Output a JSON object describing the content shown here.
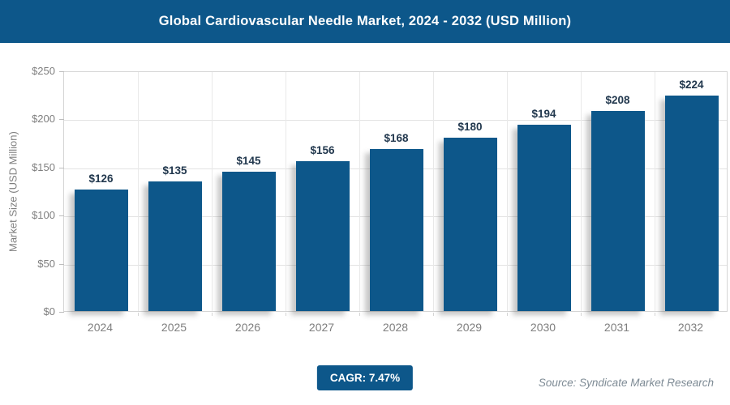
{
  "header": {
    "title": "Global Cardiovascular Needle Market, 2024 - 2032 (USD Million)"
  },
  "chart_data": {
    "type": "bar",
    "title": "Global Cardiovascular Needle Market, 2024 - 2032 (USD Million)",
    "categories": [
      "2024",
      "2025",
      "2026",
      "2027",
      "2028",
      "2029",
      "2030",
      "2031",
      "2032"
    ],
    "values": [
      126,
      135,
      145,
      156,
      168,
      180,
      194,
      208,
      224
    ],
    "value_labels": [
      "$126",
      "$135",
      "$145",
      "$156",
      "$168",
      "$180",
      "$194",
      "$208",
      "$224"
    ],
    "xlabel": "",
    "ylabel": "Market Size (USD Million)",
    "ylim": [
      0,
      250
    ],
    "ytick_step": 50,
    "ytick_labels": [
      "$0",
      "$50",
      "$100",
      "$150",
      "$200",
      "$250"
    ],
    "grid": true,
    "legend": "none",
    "bar_color": "#0D578A",
    "data_label_color": "#22384E"
  },
  "footer": {
    "cagr_label": "CAGR: 7.47%",
    "source": "Source: Syndicate Market Research"
  },
  "colors": {
    "accent": "#0D578A",
    "axis_text": "#7F7F7F",
    "gridline": "#E3E3E3",
    "plot_border": "#D5D5D5",
    "source_text": "#7E8B95",
    "title_text": "#FFFFFF"
  }
}
